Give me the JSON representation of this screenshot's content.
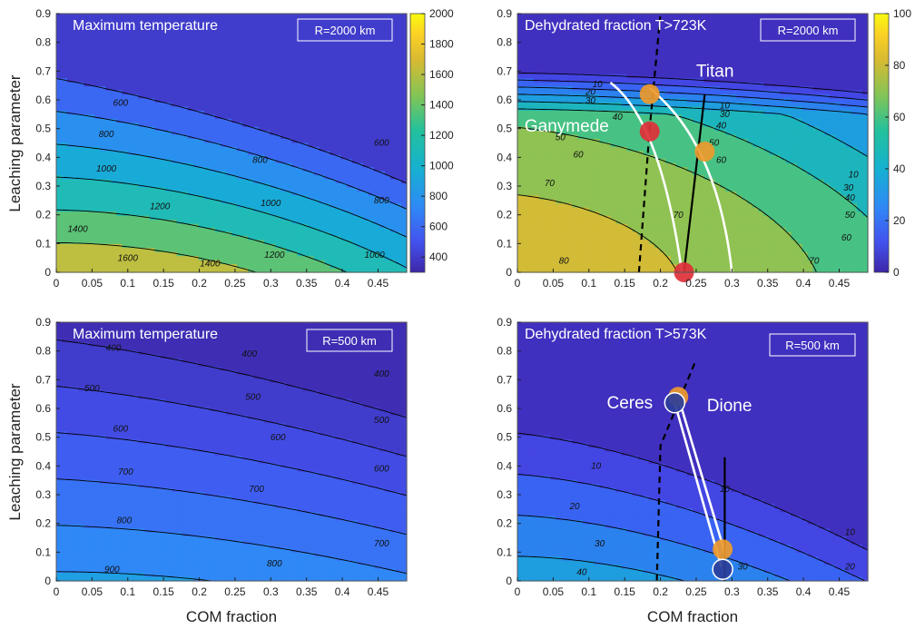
{
  "colors": {
    "scale": [
      "#3e26a8",
      "#4353f0",
      "#2f88f6",
      "#15b1d1",
      "#23c19b",
      "#80c557",
      "#d8ba32",
      "#fbd125",
      "#f9fb0e"
    ],
    "axes_bg": "#3e26a8",
    "contour_line": "#000000",
    "track_white": "#ffffff",
    "marker_orange": "#ee9a2c",
    "marker_red": "#e0303a",
    "marker_blue": "#2d3f9a"
  },
  "shared": {
    "ylabel": "Leaching parameter",
    "xlabel": "COM fraction",
    "xticks": [
      "0",
      "0.05",
      "0.1",
      "0.15",
      "0.2",
      "0.25",
      "0.3",
      "0.35",
      "0.4",
      "0.45"
    ],
    "yticks": [
      "0",
      "0.1",
      "0.2",
      "0.3",
      "0.4",
      "0.5",
      "0.6",
      "0.7",
      "0.8",
      "0.9"
    ]
  },
  "chart_data": [
    {
      "type": "contour",
      "title": "Maximum temperature",
      "box_label": "R=2000 km",
      "xlim": [
        0,
        0.49
      ],
      "ylim": [
        0,
        0.9
      ],
      "levels": [
        600,
        800,
        1000,
        1200,
        1400,
        1600
      ],
      "level_labels": [
        {
          "text": "600",
          "x": 0.09,
          "y": 0.58
        },
        {
          "text": "600",
          "x": 0.455,
          "y": 0.44
        },
        {
          "text": "800",
          "x": 0.07,
          "y": 0.47
        },
        {
          "text": "800",
          "x": 0.285,
          "y": 0.38
        },
        {
          "text": "800",
          "x": 0.455,
          "y": 0.24
        },
        {
          "text": "1000",
          "x": 0.07,
          "y": 0.35
        },
        {
          "text": "1000",
          "x": 0.3,
          "y": 0.23
        },
        {
          "text": "1000",
          "x": 0.445,
          "y": 0.05
        },
        {
          "text": "1200",
          "x": 0.145,
          "y": 0.22
        },
        {
          "text": "1200",
          "x": 0.305,
          "y": 0.05
        },
        {
          "text": "1400",
          "x": 0.03,
          "y": 0.14
        },
        {
          "text": "1400",
          "x": 0.215,
          "y": 0.02
        },
        {
          "text": "1600",
          "x": 0.1,
          "y": 0.04
        }
      ],
      "colorbar": {
        "min": 300,
        "max": 2000,
        "ticks": [
          "400",
          "600",
          "800",
          "1000",
          "1200",
          "1400",
          "1600",
          "1800",
          "2000"
        ]
      }
    },
    {
      "type": "contour",
      "title": "Dehydrated fraction T>723K",
      "box_label": "R=2000 km",
      "xlim": [
        0,
        0.49
      ],
      "ylim": [
        0,
        0.9
      ],
      "levels": [
        10,
        20,
        30,
        40,
        50,
        60,
        70,
        80
      ],
      "level_labels": [
        {
          "text": "10",
          "x": 0.112,
          "y": 0.645
        },
        {
          "text": "20",
          "x": 0.102,
          "y": 0.617
        },
        {
          "text": "30",
          "x": 0.102,
          "y": 0.587
        },
        {
          "text": "40",
          "x": 0.14,
          "y": 0.53
        },
        {
          "text": "50",
          "x": 0.06,
          "y": 0.46
        },
        {
          "text": "60",
          "x": 0.085,
          "y": 0.4
        },
        {
          "text": "70",
          "x": 0.045,
          "y": 0.3
        },
        {
          "text": "80",
          "x": 0.065,
          "y": 0.03
        },
        {
          "text": "10",
          "x": 0.29,
          "y": 0.57
        },
        {
          "text": "30",
          "x": 0.29,
          "y": 0.54
        },
        {
          "text": "40",
          "x": 0.285,
          "y": 0.5
        },
        {
          "text": "50",
          "x": 0.275,
          "y": 0.44
        },
        {
          "text": "60",
          "x": 0.285,
          "y": 0.38
        },
        {
          "text": "70",
          "x": 0.225,
          "y": 0.19
        },
        {
          "text": "70",
          "x": 0.415,
          "y": 0.03
        },
        {
          "text": "60",
          "x": 0.46,
          "y": 0.11
        },
        {
          "text": "50",
          "x": 0.465,
          "y": 0.19
        },
        {
          "text": "40",
          "x": 0.465,
          "y": 0.25
        },
        {
          "text": "30",
          "x": 0.463,
          "y": 0.285
        },
        {
          "text": "10",
          "x": 0.47,
          "y": 0.33
        }
      ],
      "colorbar": {
        "min": 0,
        "max": 100,
        "ticks": [
          "0",
          "20",
          "40",
          "60",
          "80",
          "100"
        ]
      },
      "bodies": [
        {
          "name": "Ganymede",
          "label": "Ganymede",
          "dashed_track": [
            [
              0.17,
              0.0
            ],
            [
              0.185,
              0.5
            ],
            [
              0.2,
              0.9
            ]
          ],
          "white_track": [
            [
              0.13,
              0.66
            ],
            [
              0.2,
              0.53
            ],
            [
              0.23,
              0.0
            ]
          ],
          "markers": [
            {
              "x": 0.185,
              "y": 0.62,
              "color": "orange"
            },
            {
              "x": 0.185,
              "y": 0.49,
              "color": "red"
            },
            {
              "x": 0.233,
              "y": 0.0,
              "color": "red"
            }
          ]
        },
        {
          "name": "Titan",
          "label": "Titan",
          "solid_track": [
            [
              0.233,
              0.0
            ],
            [
              0.262,
              0.62
            ]
          ],
          "white_track": [
            [
              0.185,
              0.64
            ],
            [
              0.28,
              0.45
            ],
            [
              0.3,
              0.0
            ]
          ],
          "markers": [
            {
              "x": 0.262,
              "y": 0.42,
              "color": "orange"
            }
          ]
        }
      ]
    },
    {
      "type": "contour",
      "title": "Maximum temperature",
      "box_label": "R=500 km",
      "xlim": [
        0,
        0.49
      ],
      "ylim": [
        0,
        0.9
      ],
      "levels": [
        400,
        500,
        600,
        700,
        800,
        900
      ],
      "level_labels": [
        {
          "text": "400",
          "x": 0.08,
          "y": 0.8
        },
        {
          "text": "400",
          "x": 0.27,
          "y": 0.78
        },
        {
          "text": "400",
          "x": 0.455,
          "y": 0.71
        },
        {
          "text": "500",
          "x": 0.05,
          "y": 0.66
        },
        {
          "text": "500",
          "x": 0.275,
          "y": 0.63
        },
        {
          "text": "500",
          "x": 0.455,
          "y": 0.55
        },
        {
          "text": "600",
          "x": 0.09,
          "y": 0.52
        },
        {
          "text": "600",
          "x": 0.31,
          "y": 0.49
        },
        {
          "text": "600",
          "x": 0.455,
          "y": 0.38
        },
        {
          "text": "700",
          "x": 0.097,
          "y": 0.37
        },
        {
          "text": "700",
          "x": 0.28,
          "y": 0.31
        },
        {
          "text": "700",
          "x": 0.455,
          "y": 0.12
        },
        {
          "text": "800",
          "x": 0.095,
          "y": 0.2
        },
        {
          "text": "800",
          "x": 0.305,
          "y": 0.05
        },
        {
          "text": "900",
          "x": 0.078,
          "y": 0.03
        }
      ]
    },
    {
      "type": "contour",
      "title": "Dehydrated fraction T>573K",
      "box_label": "R=500 km",
      "xlim": [
        0,
        0.49
      ],
      "ylim": [
        0,
        0.9
      ],
      "levels": [
        10,
        20,
        30,
        40
      ],
      "level_labels": [
        {
          "text": "10",
          "x": 0.11,
          "y": 0.39
        },
        {
          "text": "10",
          "x": 0.29,
          "y": 0.31
        },
        {
          "text": "10",
          "x": 0.465,
          "y": 0.16
        },
        {
          "text": "20",
          "x": 0.08,
          "y": 0.25
        },
        {
          "text": "20",
          "x": 0.465,
          "y": 0.04
        },
        {
          "text": "30",
          "x": 0.115,
          "y": 0.12
        },
        {
          "text": "30",
          "x": 0.315,
          "y": 0.04
        },
        {
          "text": "40",
          "x": 0.09,
          "y": 0.02
        }
      ],
      "bodies": [
        {
          "name": "Ceres",
          "label": "Ceres",
          "dashed_track": [
            [
              0.195,
              0.0
            ],
            [
              0.2,
              0.47
            ],
            [
              0.25,
              0.77
            ]
          ],
          "white_track": [
            [
              0.225,
              0.64
            ],
            [
              0.29,
              0.1
            ]
          ],
          "markers": [
            {
              "x": 0.225,
              "y": 0.64,
              "color": "orange"
            },
            {
              "x": 0.22,
              "y": 0.62,
              "color": "blue"
            }
          ]
        },
        {
          "name": "Dione",
          "label": "Dione",
          "solid_track": [
            [
              0.29,
              0.0
            ],
            [
              0.29,
              0.43
            ]
          ],
          "white_track": [
            [
              0.22,
              0.62
            ],
            [
              0.285,
              0.05
            ]
          ],
          "markers": [
            {
              "x": 0.287,
              "y": 0.11,
              "color": "orange"
            },
            {
              "x": 0.287,
              "y": 0.04,
              "color": "blue"
            }
          ]
        }
      ]
    }
  ]
}
